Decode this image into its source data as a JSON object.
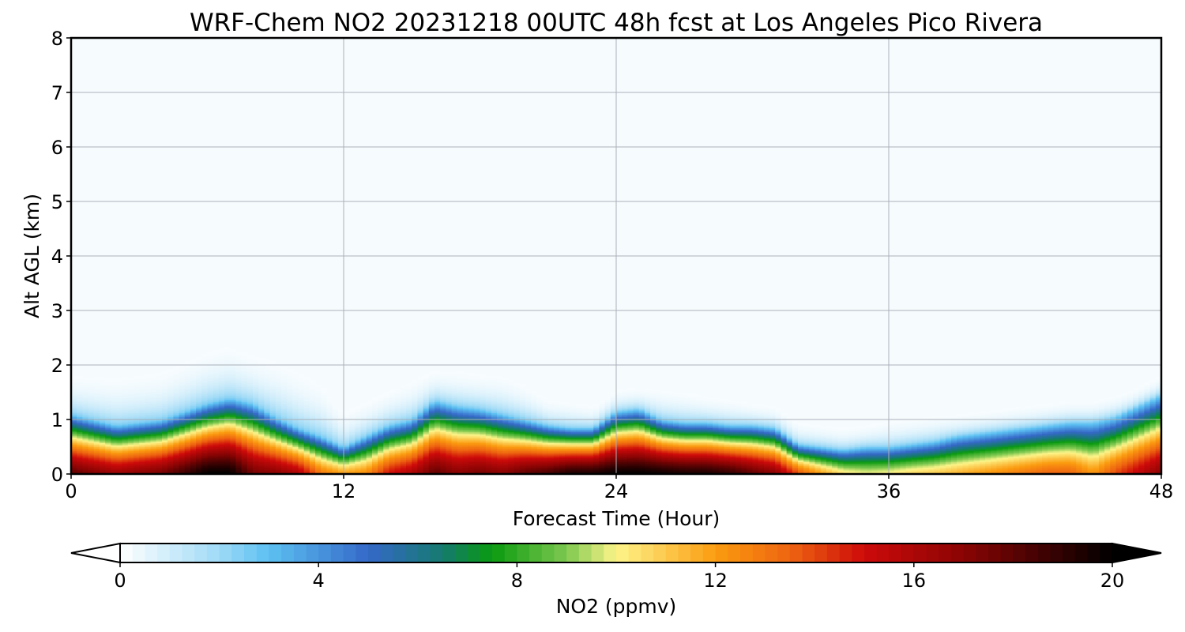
{
  "chart_data": {
    "type": "heatmap",
    "title": "WRF-Chem NO2  20231218 00UTC 48h fcst at Los Angeles Pico Rivera",
    "xlabel": "Forecast Time (Hour)",
    "ylabel": "Alt AGL (km)",
    "xlim": [
      0,
      48
    ],
    "ylim": [
      0,
      8
    ],
    "xticks": [
      "0",
      "12",
      "24",
      "36",
      "48"
    ],
    "yticks": [
      "0",
      "1",
      "2",
      "3",
      "4",
      "5",
      "6",
      "7",
      "8"
    ],
    "grid": true,
    "colorbar": {
      "label": "NO2  (ppmv)",
      "range": [
        0,
        20
      ],
      "ticks": [
        "0",
        "4",
        "8",
        "12",
        "16",
        "20"
      ],
      "extend": "both",
      "orientation": "horizontal",
      "stops": [
        {
          "value": 0,
          "color": "#ffffff"
        },
        {
          "value": 2,
          "color": "#9fdaf6"
        },
        {
          "value": 3,
          "color": "#5cc0f2"
        },
        {
          "value": 5,
          "color": "#3568c8"
        },
        {
          "value": 6.5,
          "color": "#157a6e"
        },
        {
          "value": 7.5,
          "color": "#0a9a10"
        },
        {
          "value": 9,
          "color": "#7ec850"
        },
        {
          "value": 10,
          "color": "#fdf58a"
        },
        {
          "value": 12,
          "color": "#fb9c10"
        },
        {
          "value": 13.5,
          "color": "#ee6410"
        },
        {
          "value": 15,
          "color": "#cd0a0a"
        },
        {
          "value": 17,
          "color": "#8a0404"
        },
        {
          "value": 20,
          "color": "#000000"
        }
      ]
    },
    "profile": {
      "hours": [
        0,
        2,
        4,
        6,
        7,
        8,
        9,
        10,
        11,
        12,
        13,
        14,
        15,
        16,
        17,
        18,
        19,
        20,
        21,
        22,
        23,
        24,
        25,
        26,
        27,
        28,
        29,
        30,
        31,
        32,
        33,
        34,
        35,
        36,
        37,
        38,
        39,
        40,
        41,
        42,
        43,
        44,
        45,
        46,
        47,
        48
      ],
      "surface_ppmv": [
        18,
        16.5,
        17.5,
        20,
        20,
        17.5,
        17,
        16,
        13,
        12,
        12.5,
        15,
        16,
        18,
        17,
        17.5,
        17,
        18,
        18.5,
        19.5,
        19.5,
        20,
        20,
        19.8,
        19.5,
        19.5,
        19,
        18,
        17,
        14,
        12,
        10.5,
        10,
        10.2,
        10.7,
        11,
        11.5,
        12,
        12.5,
        13,
        13.5,
        13.5,
        12.2,
        14,
        15.5,
        17
      ],
      "pbl_depth_km": [
        1.1,
        0.9,
        1.0,
        1.3,
        1.4,
        1.3,
        1.05,
        0.85,
        0.7,
        0.5,
        0.7,
        0.9,
        1.0,
        1.35,
        1.25,
        1.2,
        1.1,
        1.0,
        0.9,
        0.85,
        0.85,
        1.15,
        1.2,
        1.0,
        0.95,
        0.95,
        0.9,
        0.9,
        0.85,
        0.55,
        0.5,
        0.45,
        0.5,
        0.5,
        0.55,
        0.6,
        0.7,
        0.75,
        0.8,
        0.85,
        0.9,
        0.95,
        0.95,
        1.05,
        1.25,
        1.45
      ],
      "haze_km": [
        1.55,
        1.45,
        1.55,
        1.9,
        2.0,
        1.85,
        1.7,
        1.5,
        1.3,
        0.9,
        1.1,
        1.3,
        1.45,
        1.7,
        1.65,
        1.6,
        1.55,
        1.4,
        1.2,
        1.15,
        1.1,
        1.4,
        1.45,
        1.35,
        1.3,
        1.25,
        1.2,
        1.15,
        1.1,
        0.8,
        0.75,
        0.7,
        0.75,
        0.8,
        0.85,
        0.9,
        0.95,
        1.0,
        1.05,
        1.1,
        1.15,
        1.2,
        1.2,
        1.3,
        1.45,
        1.6
      ]
    }
  }
}
